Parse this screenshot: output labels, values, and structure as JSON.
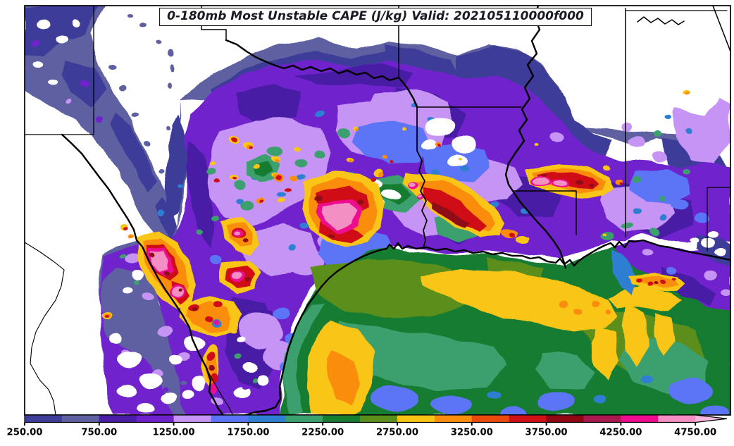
{
  "title": {
    "text": "0-180mb Most Unstable CAPE (J/kg) Valid: 202105110000f000"
  },
  "colorbar": {
    "tick_labels": [
      "250.00",
      "750.00",
      "1250.00",
      "1750.00",
      "2250.00",
      "2750.00",
      "3250.00",
      "3750.00",
      "4250.00",
      "4750.00"
    ],
    "segment_colors": [
      "#3e3e99",
      "#5f60a2",
      "#4a1da6",
      "#6f22cc",
      "#c694f4",
      "#5b74f6",
      "#2f7fd3",
      "#3ba06e",
      "#187c31",
      "#5c8e1c",
      "#f9c515",
      "#fb8d0c",
      "#ea4a0e",
      "#d01115",
      "#8f0712",
      "#aa1a4e",
      "#ee0b8e",
      "#f48fc4"
    ],
    "arrow_color": "#f8b8dc"
  },
  "map": {
    "background": "#ffffff",
    "border_color": "#000000"
  }
}
